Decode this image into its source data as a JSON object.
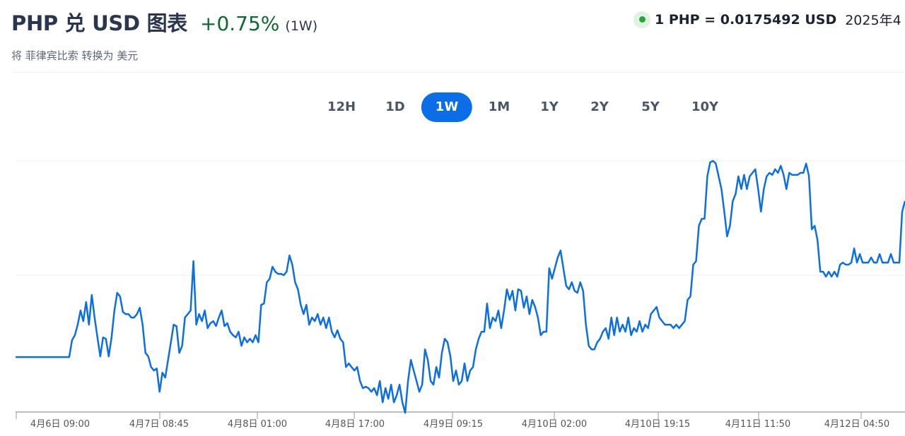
{
  "header": {
    "title": "PHP 兑 USD 图表",
    "change": "+0.75%",
    "period": "(1W)",
    "subtitle": "将 菲律宾比索 转换为 美元",
    "rate": "1 PHP = 0.0175492 USD",
    "date": "2025年4",
    "live_icon": "green-dot-icon"
  },
  "tabs": [
    {
      "label": "12H",
      "active": false
    },
    {
      "label": "1D",
      "active": false
    },
    {
      "label": "1W",
      "active": true
    },
    {
      "label": "1M",
      "active": false
    },
    {
      "label": "1Y",
      "active": false
    },
    {
      "label": "2Y",
      "active": false
    },
    {
      "label": "5Y",
      "active": false
    },
    {
      "label": "10Y",
      "active": false
    }
  ],
  "colors": {
    "line": "#0b6ee6",
    "accent": "#0b6ee6",
    "positive": "#0a6b2b"
  },
  "chart_data": {
    "type": "line",
    "title": "",
    "xlabel": "",
    "ylabel": "",
    "grid": true,
    "ylim": [
      0.01737,
      0.01759
    ],
    "x_tick_labels": [
      "4月6日 09:00",
      "4月7日 08:45",
      "4月8日 01:00",
      "4月8日 17:00",
      "4月9日 09:15",
      "4月10日 02:00",
      "4月10日 19:15",
      "4月11日 11:50",
      "4月12日 04:50"
    ],
    "series": [
      {
        "values": [
          0.0174193,
          0.0174193,
          0.0174193,
          0.0174193,
          0.0174193,
          0.0174193,
          0.0174193,
          0.0174193,
          0.0174193,
          0.0174193,
          0.0174193,
          0.0174193,
          0.0174193,
          0.0174193,
          0.0174193,
          0.0174193,
          0.0174193,
          0.0174193,
          0.0174193,
          0.0174193,
          0.0174334,
          0.0174375,
          0.0174463,
          0.0174581,
          0.0174492,
          0.0174651,
          0.0174463,
          0.017471,
          0.0174522,
          0.0174357,
          0.0174198,
          0.0174357,
          0.0174345,
          0.0174198,
          0.0174357,
          0.0174581,
          0.0174728,
          0.0174698,
          0.0174569,
          0.0174551,
          0.0174551,
          0.0174522,
          0.0174522,
          0.0174551,
          0.0174604,
          0.0174463,
          0.0174228,
          0.0174198,
          0.017411,
          0.0174081,
          0.0174098,
          0.0173904,
          0.0174063,
          0.0174022,
          0.0174169,
          0.0174316,
          0.0174463,
          0.0174451,
          0.0174228,
          0.0174287,
          0.0174522,
          0.0174551,
          0.0174581,
          0.0174992,
          0.0174463,
          0.0174551,
          0.0174492,
          0.0174581,
          0.0174434,
          0.0174475,
          0.0174492,
          0.0174451,
          0.0174522,
          0.0174581,
          0.0174451,
          0.0174475,
          0.0174404,
          0.0174375,
          0.0174357,
          0.0174404,
          0.0174287,
          0.0174357,
          0.0174316,
          0.0174345,
          0.0174316,
          0.0174375,
          0.0174316,
          0.0174628,
          0.0174639,
          0.0174816,
          0.0174845,
          0.0174945,
          0.0174904,
          0.0174886,
          0.0174886,
          0.0174875,
          0.0174904,
          0.0175039,
          0.0174963,
          0.0174816,
          0.0174757,
          0.0174628,
          0.0174551,
          0.0174628,
          0.0174463,
          0.0174522,
          0.0174492,
          0.0174551,
          0.0174463,
          0.0174522,
          0.0174434,
          0.0174522,
          0.0174404,
          0.0174357,
          0.0174416,
          0.0174345,
          0.0174316,
          0.017411,
          0.017414,
          0.017411,
          0.0174081,
          0.017411,
          0.0173993,
          0.0173934,
          0.0173946,
          0.0173934,
          0.0173904,
          0.0173934,
          0.0173875,
          0.0173993,
          0.0173816,
          0.0173934,
          0.0173846,
          0.0173963,
          0.0173816,
          0.0173875,
          0.0173963,
          0.0173816,
          0.0173728,
          0.0173993,
          0.0174169,
          0.0174081,
          0.0173993,
          0.0173904,
          0.0173963,
          0.0174257,
          0.0174169,
          0.0173993,
          0.0173963,
          0.017411,
          0.0174022,
          0.0174228,
          0.0174345,
          0.0174316,
          0.0174198,
          0.0173993,
          0.0174081,
          0.0173963,
          0.0173993,
          0.017414,
          0.0173993,
          0.0174081,
          0.017411,
          0.0174257,
          0.0174345,
          0.0174404,
          0.0174404,
          0.0174639,
          0.0174434,
          0.0174522,
          0.0174492,
          0.0174581,
          0.0174434,
          0.0174581,
          0.0174757,
          0.0174669,
          0.0174745,
          0.0174581,
          0.0174757,
          0.0174745,
          0.0174604,
          0.0174698,
          0.0174551,
          0.0174669,
          0.017461,
          0.0174522,
          0.0174375,
          0.0174404,
          0.0174404,
          0.0174933,
          0.0174845,
          0.0174933,
          0.0175022,
          0.017508,
          0.0174933,
          0.0174786,
          0.0174757,
          0.0174816,
          0.0174745,
          0.0174728,
          0.0174816,
          0.0174745,
          0.0174463,
          0.0174287,
          0.0174257,
          0.0174257,
          0.0174316,
          0.0174345,
          0.0174404,
          0.0174434,
          0.0174345,
          0.0174522,
          0.0174375,
          0.0174522,
          0.0174404,
          0.0174463,
          0.0174404,
          0.0174522,
          0.0174375,
          0.0174434,
          0.0174404,
          0.0174492,
          0.0174404,
          0.0174463,
          0.0174434,
          0.0174551,
          0.0174581,
          0.017461,
          0.0174522,
          0.0174492,
          0.0174463,
          0.0174463,
          0.0174463,
          0.0174434,
          0.0174463,
          0.0174434,
          0.0174463,
          0.0174492,
          0.0174669,
          0.0174698,
          0.0174963,
          0.0174992,
          0.0175286,
          0.0175345,
          0.0175345,
          0.0175698,
          0.0175815,
          0.0175827,
          0.0175804,
          0.0175698,
          0.0175592,
          0.0175404,
          0.0175198,
          0.0175286,
          0.0175492,
          0.0175551,
          0.0175698,
          0.0175592,
          0.017571,
          0.0175592,
          0.0175698,
          0.0175727,
          0.0175757,
          0.0175592,
          0.0175404,
          0.0175592,
          0.0175698,
          0.0175727,
          0.017571,
          0.0175757,
          0.0175727,
          0.0175786,
          0.017571,
          0.0175592,
          0.0175727,
          0.017571,
          0.017571,
          0.017571,
          0.0175727,
          0.0175727,
          0.0175804,
          0.0175698,
          0.0175257,
          0.0175286,
          0.0175169,
          0.0174904,
          0.0174904,
          0.0174863,
          0.0174904,
          0.0174863,
          0.0174904,
          0.0174863,
          0.0174963,
          0.017498,
          0.0174963,
          0.0174963,
          0.017498,
          0.0175098,
          0.017498,
          0.0175051,
          0.017498,
          0.017498,
          0.017498,
          0.0175022,
          0.017498,
          0.017498,
          0.0175051,
          0.017498,
          0.017498,
          0.017498,
          0.0175051,
          0.017498,
          0.017498,
          0.017498,
          0.0175404,
          0.0175492
        ]
      }
    ]
  }
}
